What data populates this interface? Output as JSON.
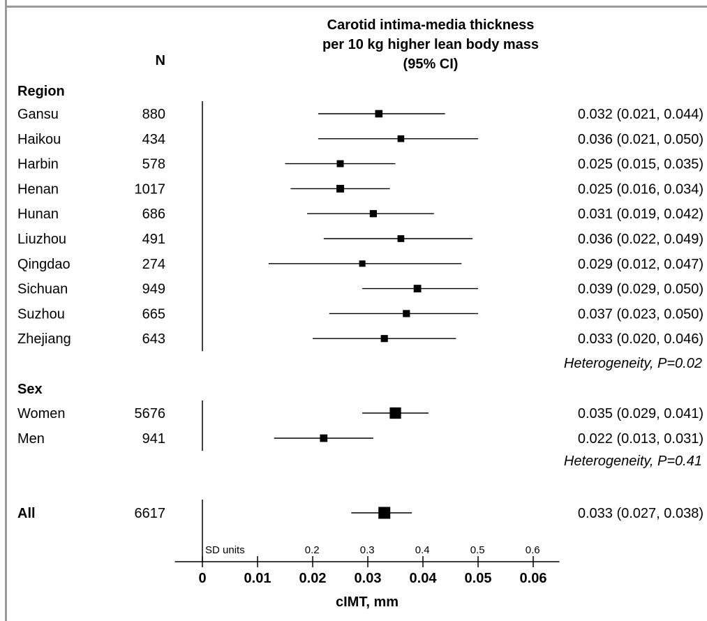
{
  "chart_data": {
    "type": "forest",
    "title_lines": [
      "Carotid intima-media thickness",
      "per 10 kg higher lean body mass",
      "(95% CI)"
    ],
    "n_header": "N",
    "xlabel": "cIMT, mm",
    "xlim": [
      -0.005,
      0.065
    ],
    "x_ticks": [
      0,
      0.01,
      0.02,
      0.03,
      0.04,
      0.05,
      0.06
    ],
    "x_tick_labels": [
      "0",
      "0.01",
      "0.02",
      "0.03",
      "0.04",
      "0.05",
      "0.06"
    ],
    "sd_units_label": "SD units",
    "sd_ticks": [
      {
        "label": "0.2",
        "value": 0.0199
      },
      {
        "label": "0.3",
        "value": 0.0299
      },
      {
        "label": "0.4",
        "value": 0.0399
      },
      {
        "label": "0.5",
        "value": 0.0499
      },
      {
        "label": "0.6",
        "value": 0.0599
      }
    ],
    "groups": [
      {
        "heading": "Region",
        "heterogeneity": "Heterogeneity, P=0.02",
        "rows": [
          {
            "label": "Gansu",
            "n": "880",
            "est": 0.032,
            "lo": 0.021,
            "hi": 0.044,
            "ci_text": "0.032 (0.021, 0.044)",
            "weight": 880
          },
          {
            "label": "Haikou",
            "n": "434",
            "est": 0.036,
            "lo": 0.021,
            "hi": 0.05,
            "ci_text": "0.036 (0.021, 0.050)",
            "weight": 434
          },
          {
            "label": "Harbin",
            "n": "578",
            "est": 0.025,
            "lo": 0.015,
            "hi": 0.035,
            "ci_text": "0.025 (0.015, 0.035)",
            "weight": 578
          },
          {
            "label": "Henan",
            "n": "1017",
            "est": 0.025,
            "lo": 0.016,
            "hi": 0.034,
            "ci_text": "0.025 (0.016, 0.034)",
            "weight": 1017
          },
          {
            "label": "Hunan",
            "n": "686",
            "est": 0.031,
            "lo": 0.019,
            "hi": 0.042,
            "ci_text": "0.031 (0.019, 0.042)",
            "weight": 686
          },
          {
            "label": "Liuzhou",
            "n": "491",
            "est": 0.036,
            "lo": 0.022,
            "hi": 0.049,
            "ci_text": "0.036 (0.022, 0.049)",
            "weight": 491
          },
          {
            "label": "Qingdao",
            "n": "274",
            "est": 0.029,
            "lo": 0.012,
            "hi": 0.047,
            "ci_text": "0.029 (0.012, 0.047)",
            "weight": 274
          },
          {
            "label": "Sichuan",
            "n": "949",
            "est": 0.039,
            "lo": 0.029,
            "hi": 0.05,
            "ci_text": "0.039 (0.029, 0.050)",
            "weight": 949
          },
          {
            "label": "Suzhou",
            "n": "665",
            "est": 0.037,
            "lo": 0.023,
            "hi": 0.05,
            "ci_text": "0.037 (0.023, 0.050)",
            "weight": 665
          },
          {
            "label": "Zhejiang",
            "n": "643",
            "est": 0.033,
            "lo": 0.02,
            "hi": 0.046,
            "ci_text": "0.033 (0.020, 0.046)",
            "weight": 643
          }
        ]
      },
      {
        "heading": "Sex",
        "heterogeneity": "Heterogeneity, P=0.41",
        "rows": [
          {
            "label": "Women",
            "n": "5676",
            "est": 0.035,
            "lo": 0.029,
            "hi": 0.041,
            "ci_text": "0.035 (0.029, 0.041)",
            "weight": 5676
          },
          {
            "label": "Men",
            "n": "941",
            "est": 0.022,
            "lo": 0.013,
            "hi": 0.031,
            "ci_text": "0.022 (0.013, 0.031)",
            "weight": 941
          }
        ]
      },
      {
        "heading": "",
        "heterogeneity": "",
        "rows": [
          {
            "label": "All",
            "n": "6617",
            "est": 0.033,
            "lo": 0.027,
            "hi": 0.038,
            "ci_text": "0.033 (0.027, 0.038)",
            "weight": 6617,
            "bold": true
          }
        ]
      }
    ]
  }
}
